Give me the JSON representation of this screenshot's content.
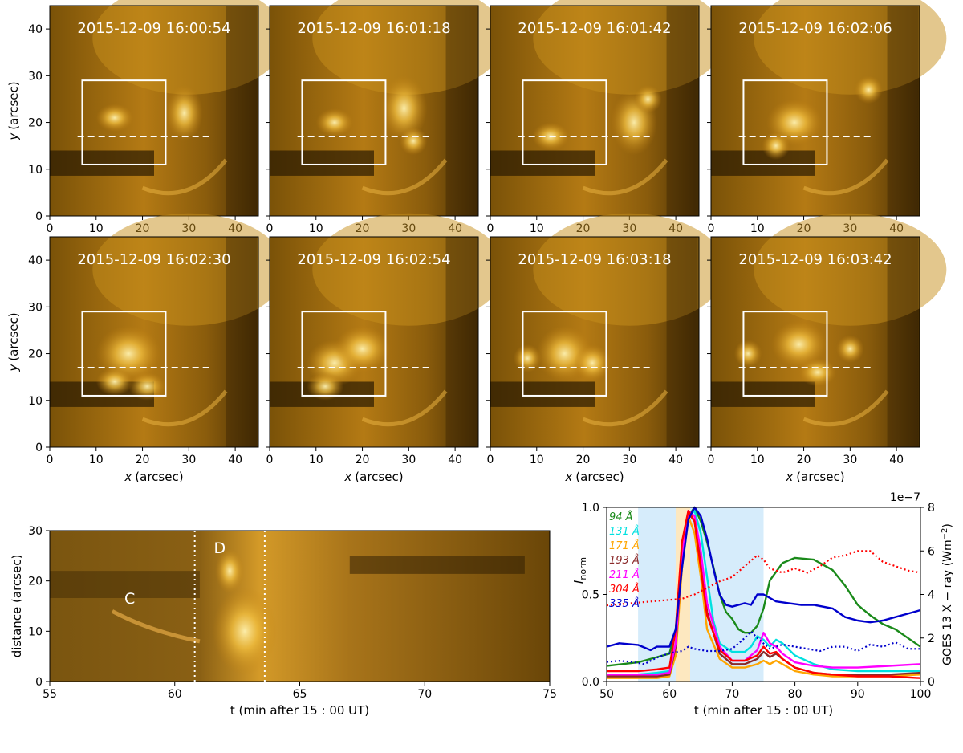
{
  "panels": {
    "ylabel_var": "y",
    "ylabel_unit": "(arcsec)",
    "xlabel_var": "x",
    "xlabel_unit": "(arcsec)",
    "x_ticks": [
      "0",
      "10",
      "20",
      "30",
      "40"
    ],
    "y_ticks": [
      "0",
      "10",
      "20",
      "30",
      "40"
    ],
    "timestamps": [
      "2015-12-09 16:00:54",
      "2015-12-09 16:01:18",
      "2015-12-09 16:01:42",
      "2015-12-09 16:02:06",
      "2015-12-09 16:02:30",
      "2015-12-09 16:02:54",
      "2015-12-09 16:03:18",
      "2015-12-09 16:03:42"
    ],
    "box": {
      "x0": 7,
      "x1": 25,
      "y0": 11,
      "y1": 29
    },
    "slit": {
      "x0": 6,
      "x1": 35,
      "y": 17
    }
  },
  "timedistance": {
    "ylabel": "distance (arcsec)",
    "xlabel": "t (min after 15 : 00 UT)",
    "x_ticks": [
      "55",
      "60",
      "65",
      "70",
      "75"
    ],
    "y_ticks": [
      "0",
      "10",
      "20",
      "30"
    ],
    "labels": [
      "C",
      "D"
    ],
    "dotted_lines": [
      60.8,
      63.6
    ]
  },
  "lightcurve": {
    "ylabel": "I",
    "ylabel_sub": "norm",
    "xlabel": "t (min after 15 : 00 UT)",
    "y2label": "GOES 13 X − ray (Wm",
    "y2label_sup": "−2",
    "y2label_end": ")",
    "y2_exponent": "1e−7",
    "x_ticks": [
      "50",
      "60",
      "70",
      "80",
      "90",
      "100"
    ],
    "y_ticks": [
      "0.0",
      "0.5",
      "1.0"
    ],
    "y2_ticks": [
      "0",
      "2",
      "4",
      "6",
      "8"
    ],
    "legend": [
      {
        "label": "94 Å",
        "color": "#1a8a1a"
      },
      {
        "label": "131 Å",
        "color": "#00e0e0"
      },
      {
        "label": "171 Å",
        "color": "#ffa500"
      },
      {
        "label": "193 Å",
        "color": "#8b2a2a"
      },
      {
        "label": "211 Å",
        "color": "#ff00ff"
      },
      {
        "label": "304 Å",
        "color": "#ff0000"
      },
      {
        "label": "335 Å",
        "color": "#0000cc"
      }
    ]
  },
  "chart_data": {
    "type": "line",
    "xlabel": "t (min after 15 : 00 UT)",
    "ylabel": "I norm",
    "xlim": [
      50,
      100
    ],
    "ylim": [
      0,
      1.0
    ],
    "y2lim": [
      0,
      8e-07
    ],
    "shaded_regions": [
      {
        "x": [
          55,
          75
        ],
        "color": "#d6ecfb"
      },
      {
        "x": [
          61,
          63.3
        ],
        "color": "#fde8c0"
      }
    ],
    "series": [
      {
        "name": "94 Å",
        "color": "#1a8a1a",
        "x": [
          50,
          55,
          58,
          60,
          61,
          62,
          63,
          64,
          65,
          66,
          67,
          68,
          69,
          70,
          71,
          72,
          73,
          74,
          75,
          76,
          78,
          80,
          83,
          86,
          88,
          90,
          92,
          94,
          96,
          98,
          100
        ],
        "y": [
          0.09,
          0.11,
          0.14,
          0.16,
          0.3,
          0.7,
          0.95,
          1.0,
          0.92,
          0.8,
          0.66,
          0.5,
          0.4,
          0.36,
          0.3,
          0.28,
          0.28,
          0.32,
          0.42,
          0.58,
          0.68,
          0.71,
          0.7,
          0.64,
          0.55,
          0.44,
          0.38,
          0.33,
          0.3,
          0.25,
          0.2
        ]
      },
      {
        "name": "131 Å",
        "color": "#00e0e0",
        "x": [
          50,
          55,
          58,
          60,
          61,
          62,
          63,
          64,
          65,
          66,
          67,
          68,
          70,
          72,
          73,
          74,
          75,
          76,
          77,
          78,
          80,
          83,
          86,
          90,
          95,
          100
        ],
        "y": [
          0.03,
          0.04,
          0.05,
          0.06,
          0.2,
          0.7,
          0.95,
          0.98,
          0.85,
          0.6,
          0.35,
          0.22,
          0.17,
          0.17,
          0.2,
          0.26,
          0.24,
          0.2,
          0.24,
          0.22,
          0.15,
          0.1,
          0.07,
          0.06,
          0.06,
          0.06
        ]
      },
      {
        "name": "171 Å",
        "color": "#ffa500",
        "x": [
          50,
          55,
          58,
          60,
          61,
          62,
          63,
          64,
          65,
          66,
          68,
          70,
          72,
          74,
          75,
          76,
          77,
          78,
          80,
          83,
          86,
          90,
          95,
          100
        ],
        "y": [
          0.02,
          0.02,
          0.02,
          0.03,
          0.15,
          0.65,
          0.95,
          0.85,
          0.6,
          0.3,
          0.13,
          0.08,
          0.08,
          0.1,
          0.12,
          0.1,
          0.12,
          0.1,
          0.06,
          0.04,
          0.03,
          0.03,
          0.03,
          0.04
        ]
      },
      {
        "name": "193 Å",
        "color": "#8b2a2a",
        "x": [
          50,
          55,
          58,
          60,
          61,
          62,
          63,
          64,
          65,
          66,
          68,
          70,
          72,
          74,
          75,
          76,
          77,
          78,
          80,
          83,
          86,
          90,
          95,
          100
        ],
        "y": [
          0.03,
          0.03,
          0.03,
          0.04,
          0.2,
          0.7,
          0.97,
          0.92,
          0.7,
          0.4,
          0.16,
          0.1,
          0.1,
          0.13,
          0.17,
          0.14,
          0.16,
          0.13,
          0.08,
          0.05,
          0.04,
          0.04,
          0.04,
          0.05
        ]
      },
      {
        "name": "211 Å",
        "color": "#ff00ff",
        "x": [
          50,
          55,
          58,
          60,
          61,
          62,
          63,
          64,
          65,
          66,
          68,
          70,
          72,
          74,
          75,
          76,
          77,
          78,
          80,
          83,
          86,
          90,
          95,
          100
        ],
        "y": [
          0.04,
          0.04,
          0.04,
          0.05,
          0.22,
          0.72,
          0.98,
          0.95,
          0.75,
          0.45,
          0.2,
          0.12,
          0.12,
          0.18,
          0.28,
          0.22,
          0.2,
          0.16,
          0.11,
          0.09,
          0.08,
          0.08,
          0.09,
          0.1
        ]
      },
      {
        "name": "304 Å",
        "color": "#ff0000",
        "x": [
          50,
          55,
          58,
          60,
          61,
          62,
          63,
          64,
          65,
          66,
          68,
          70,
          72,
          74,
          75,
          76,
          77,
          78,
          80,
          83,
          86,
          90,
          95,
          100
        ],
        "y": [
          0.06,
          0.06,
          0.07,
          0.08,
          0.3,
          0.8,
          0.98,
          0.92,
          0.65,
          0.38,
          0.18,
          0.12,
          0.12,
          0.15,
          0.2,
          0.16,
          0.17,
          0.13,
          0.08,
          0.05,
          0.04,
          0.03,
          0.03,
          0.02
        ]
      },
      {
        "name": "335 Å",
        "color": "#0000cc",
        "x": [
          50,
          52,
          55,
          57,
          58,
          60,
          61,
          62,
          63,
          64,
          65,
          66,
          67,
          68,
          69,
          70,
          72,
          73,
          74,
          75,
          77,
          79,
          81,
          83,
          86,
          88,
          90,
          92,
          94,
          96,
          98,
          100
        ],
        "y": [
          0.2,
          0.22,
          0.21,
          0.18,
          0.2,
          0.2,
          0.3,
          0.65,
          0.93,
          1.0,
          0.95,
          0.82,
          0.65,
          0.5,
          0.44,
          0.43,
          0.45,
          0.44,
          0.5,
          0.5,
          0.46,
          0.45,
          0.44,
          0.44,
          0.42,
          0.37,
          0.35,
          0.34,
          0.35,
          0.37,
          0.39,
          0.41
        ]
      },
      {
        "name": "GOES dotted red",
        "color": "#ff0000",
        "axis": "y2",
        "x": [
          50,
          54,
          58,
          62,
          64,
          66,
          68,
          70,
          72,
          74,
          75,
          76,
          78,
          80,
          82,
          84,
          86,
          88,
          90,
          92,
          94,
          96,
          98,
          100
        ],
        "y": [
          3.5e-07,
          3.6e-07,
          3.7e-07,
          3.8e-07,
          4e-07,
          4.3e-07,
          4.6e-07,
          4.8e-07,
          5.3e-07,
          5.8e-07,
          5.6e-07,
          5.2e-07,
          5e-07,
          5.2e-07,
          5e-07,
          5.3e-07,
          5.7e-07,
          5.8e-07,
          6e-07,
          6e-07,
          5.5e-07,
          5.3e-07,
          5.1e-07,
          5e-07
        ]
      },
      {
        "name": "GOES dotted blue",
        "color": "#0000cc",
        "axis": "y2",
        "x": [
          50,
          52,
          54,
          56,
          58,
          60,
          62,
          63,
          64,
          66,
          68,
          70,
          72,
          73,
          74,
          76,
          78,
          80,
          82,
          84,
          86,
          88,
          90,
          92,
          94,
          96,
          98,
          100
        ],
        "y": [
          9e-08,
          9.5e-08,
          9e-08,
          8e-08,
          1.1e-07,
          1.3e-07,
          1.4e-07,
          1.6e-07,
          1.5e-07,
          1.4e-07,
          1.4e-07,
          1.5e-07,
          2e-07,
          2.3e-07,
          2e-07,
          1.5e-07,
          1.7e-07,
          1.6e-07,
          1.5e-07,
          1.4e-07,
          1.6e-07,
          1.6e-07,
          1.4e-07,
          1.7e-07,
          1.6e-07,
          1.8e-07,
          1.5e-07,
          1.5e-07
        ]
      }
    ]
  }
}
